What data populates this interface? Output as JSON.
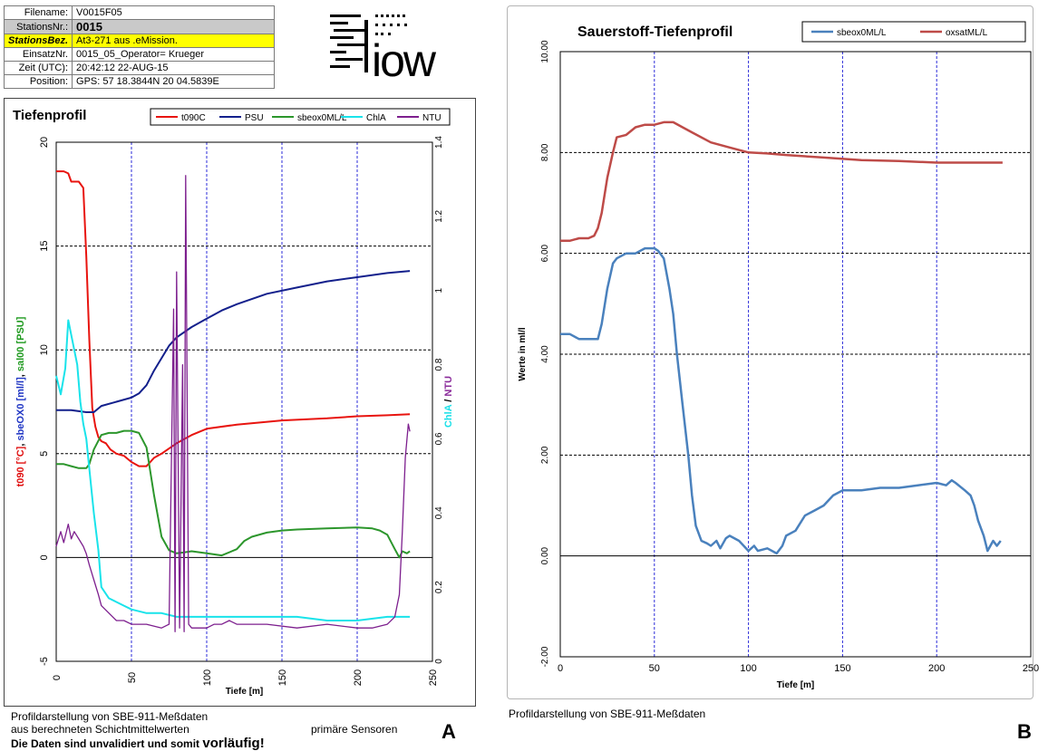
{
  "panelA": {
    "header": {
      "filename_label": "Filename:",
      "filename": "V0015F05",
      "station_label": "StationsNr.:",
      "station": "0015",
      "stationsbez_label": "StationsBez.",
      "stationsbez": "At3-271 aus .eMission.",
      "einsatz_label": "EinsatzNr.",
      "einsatz": "0015_05_Operator= Krueger",
      "zeit_label": "Zeit (UTC):",
      "zeit": "20:42:12 22-AUG-15",
      "position_label": "Position:",
      "position": "GPS: 57 18.3844N 20 04.5839E"
    },
    "logo_text": "iow",
    "footer_line1": "Profildarstellung von SBE-911-Meßdaten",
    "footer_line2": "aus berechneten Schichtmittelwerten",
    "footer_line3a": "Die Daten sind unvalidiert und somit ",
    "footer_line3b": "vorläufig!",
    "footer_right": "primäre Sensoren",
    "letter": "A"
  },
  "panelB": {
    "footer": "Profildarstellung von SBE-911-Meßdaten",
    "letter": "B"
  },
  "chart_data": [
    {
      "type": "line",
      "title": "Tiefenprofil",
      "xlabel": "Tiefe [m]",
      "ylabel_parts": [
        "t090 [°C]",
        ", ",
        "sbeOX0 [ml/l]",
        ", ",
        "sal00 [PSU]"
      ],
      "ylabel_colors": [
        "#e01010",
        "#000000",
        "#1f35c4",
        "#000000",
        "#1f9a1f"
      ],
      "y2label_parts": [
        "ChlA",
        " / ",
        "NTU"
      ],
      "y2label_colors": [
        "#19e0e8",
        "#000000",
        "#8a2a9a"
      ],
      "xlim": [
        0,
        250
      ],
      "ylim": [
        -5,
        20
      ],
      "y2lim": [
        0,
        1.4
      ],
      "xticks": [
        "0",
        "50",
        "100",
        "150",
        "200",
        "250"
      ],
      "yticks": [
        "-5",
        "0",
        "5",
        "10",
        "15",
        "20"
      ],
      "y2ticks": [
        "0",
        "0.2",
        "0.4",
        "0.6",
        "0.8",
        "1",
        "1.2",
        "1.4"
      ],
      "legend_position": "top-right",
      "series": [
        {
          "name": "t090C",
          "color": "#e8140f",
          "axis": "left",
          "x": [
            0,
            5,
            8,
            10,
            15,
            18,
            20,
            22,
            24,
            26,
            28,
            30,
            33,
            36,
            40,
            45,
            50,
            55,
            60,
            65,
            70,
            80,
            90,
            100,
            120,
            150,
            180,
            200,
            220,
            235
          ],
          "y": [
            18.6,
            18.6,
            18.5,
            18.1,
            18.1,
            17.8,
            14.5,
            10.5,
            7.2,
            6.3,
            5.8,
            5.6,
            5.5,
            5.2,
            5.0,
            4.9,
            4.6,
            4.4,
            4.4,
            4.8,
            5.0,
            5.5,
            5.9,
            6.2,
            6.4,
            6.6,
            6.7,
            6.8,
            6.85,
            6.9
          ]
        },
        {
          "name": "PSU",
          "color": "#13208c",
          "axis": "left",
          "x": [
            0,
            10,
            20,
            25,
            30,
            40,
            50,
            55,
            60,
            65,
            70,
            75,
            80,
            90,
            100,
            110,
            120,
            140,
            160,
            180,
            200,
            220,
            235
          ],
          "y": [
            7.1,
            7.1,
            7.0,
            7.0,
            7.3,
            7.5,
            7.7,
            7.9,
            8.3,
            9.0,
            9.6,
            10.2,
            10.6,
            11.1,
            11.5,
            11.9,
            12.2,
            12.7,
            13.0,
            13.3,
            13.5,
            13.7,
            13.8
          ]
        },
        {
          "name": "sbeox0ML/L",
          "color": "#2c962c",
          "axis": "left",
          "x": [
            0,
            5,
            10,
            15,
            20,
            22,
            25,
            30,
            35,
            40,
            45,
            50,
            55,
            60,
            65,
            70,
            75,
            80,
            85,
            90,
            100,
            110,
            120,
            125,
            130,
            140,
            150,
            160,
            180,
            200,
            210,
            215,
            220,
            225,
            228,
            230,
            233,
            235
          ],
          "y": [
            4.5,
            4.5,
            4.4,
            4.3,
            4.3,
            4.5,
            5.2,
            5.9,
            6.0,
            6.0,
            6.1,
            6.1,
            6.0,
            5.3,
            3.0,
            1.0,
            0.35,
            0.2,
            0.25,
            0.3,
            0.2,
            0.1,
            0.4,
            0.8,
            1.0,
            1.2,
            1.3,
            1.35,
            1.4,
            1.45,
            1.4,
            1.3,
            1.1,
            0.4,
            0.0,
            0.3,
            0.2,
            0.3
          ]
        },
        {
          "name": "ChlA",
          "color": "#19e3ea",
          "axis": "right",
          "x": [
            0,
            3,
            6,
            8,
            10,
            12,
            14,
            16,
            18,
            20,
            22,
            25,
            28,
            30,
            35,
            40,
            45,
            50,
            60,
            70,
            80,
            90,
            100,
            120,
            140,
            160,
            180,
            200,
            220,
            235
          ],
          "y": [
            0.77,
            0.72,
            0.79,
            0.92,
            0.88,
            0.84,
            0.8,
            0.7,
            0.64,
            0.6,
            0.52,
            0.4,
            0.3,
            0.2,
            0.17,
            0.16,
            0.15,
            0.14,
            0.13,
            0.13,
            0.12,
            0.12,
            0.12,
            0.12,
            0.12,
            0.12,
            0.11,
            0.11,
            0.12,
            0.12
          ]
        },
        {
          "name": "NTU",
          "color": "#7d1f8e",
          "axis": "right",
          "x": [
            0,
            3,
            5,
            8,
            10,
            12,
            15,
            18,
            20,
            22,
            25,
            28,
            30,
            35,
            40,
            45,
            50,
            55,
            60,
            70,
            75,
            78,
            79,
            80,
            82,
            84,
            85,
            86,
            88,
            90,
            95,
            100,
            105,
            110,
            115,
            120,
            140,
            160,
            180,
            200,
            210,
            220,
            225,
            228,
            230,
            232,
            234,
            235
          ],
          "y": [
            0.31,
            0.35,
            0.32,
            0.37,
            0.33,
            0.35,
            0.33,
            0.31,
            0.29,
            0.26,
            0.22,
            0.18,
            0.15,
            0.13,
            0.11,
            0.11,
            0.1,
            0.1,
            0.1,
            0.09,
            0.1,
            0.95,
            0.08,
            1.05,
            0.09,
            0.8,
            0.08,
            1.31,
            0.1,
            0.09,
            0.09,
            0.09,
            0.1,
            0.1,
            0.11,
            0.1,
            0.1,
            0.09,
            0.1,
            0.09,
            0.09,
            0.1,
            0.12,
            0.18,
            0.35,
            0.55,
            0.64,
            0.62
          ]
        }
      ]
    },
    {
      "type": "line",
      "title": "Sauerstoff-Tiefenprofil",
      "xlabel": "Tiefe [m]",
      "ylabel": "Werte in ml/l",
      "xlim": [
        0,
        250
      ],
      "ylim": [
        -2,
        10
      ],
      "xticks": [
        "0",
        "50",
        "100",
        "150",
        "200",
        "250"
      ],
      "yticks": [
        "-2.00",
        "0.00",
        "2.00",
        "4.00",
        "6.00",
        "8.00",
        "10.00"
      ],
      "legend_position": "top-right",
      "series": [
        {
          "name": "sbeox0ML/L",
          "color": "#4a81bd",
          "x": [
            0,
            5,
            10,
            15,
            20,
            22,
            25,
            28,
            30,
            35,
            40,
            45,
            50,
            52,
            55,
            58,
            60,
            62,
            65,
            68,
            70,
            72,
            75,
            78,
            80,
            83,
            85,
            88,
            90,
            95,
            100,
            103,
            105,
            110,
            115,
            118,
            120,
            125,
            130,
            135,
            140,
            145,
            150,
            160,
            170,
            180,
            190,
            200,
            205,
            208,
            210,
            215,
            218,
            220,
            222,
            225,
            227,
            230,
            232,
            234
          ],
          "y": [
            4.4,
            4.4,
            4.3,
            4.3,
            4.3,
            4.6,
            5.3,
            5.8,
            5.9,
            6.0,
            6.0,
            6.1,
            6.1,
            6.05,
            5.9,
            5.3,
            4.8,
            4.0,
            3.0,
            2.0,
            1.2,
            0.6,
            0.3,
            0.25,
            0.2,
            0.3,
            0.15,
            0.35,
            0.4,
            0.3,
            0.1,
            0.2,
            0.1,
            0.15,
            0.05,
            0.2,
            0.4,
            0.5,
            0.8,
            0.9,
            1.0,
            1.2,
            1.3,
            1.3,
            1.35,
            1.35,
            1.4,
            1.45,
            1.4,
            1.5,
            1.45,
            1.3,
            1.2,
            1.0,
            0.7,
            0.4,
            0.1,
            0.3,
            0.2,
            0.3
          ]
        },
        {
          "name": "oxsatML/L",
          "color": "#be4b48",
          "x": [
            0,
            5,
            10,
            15,
            18,
            20,
            22,
            25,
            28,
            30,
            35,
            40,
            45,
            50,
            55,
            60,
            65,
            70,
            80,
            90,
            100,
            110,
            120,
            140,
            160,
            180,
            200,
            220,
            235
          ],
          "y": [
            6.25,
            6.25,
            6.3,
            6.3,
            6.35,
            6.5,
            6.8,
            7.5,
            8.0,
            8.3,
            8.35,
            8.5,
            8.55,
            8.55,
            8.6,
            8.6,
            8.5,
            8.4,
            8.2,
            8.1,
            8.0,
            7.98,
            7.95,
            7.9,
            7.85,
            7.83,
            7.8,
            7.8,
            7.8
          ]
        }
      ]
    }
  ]
}
